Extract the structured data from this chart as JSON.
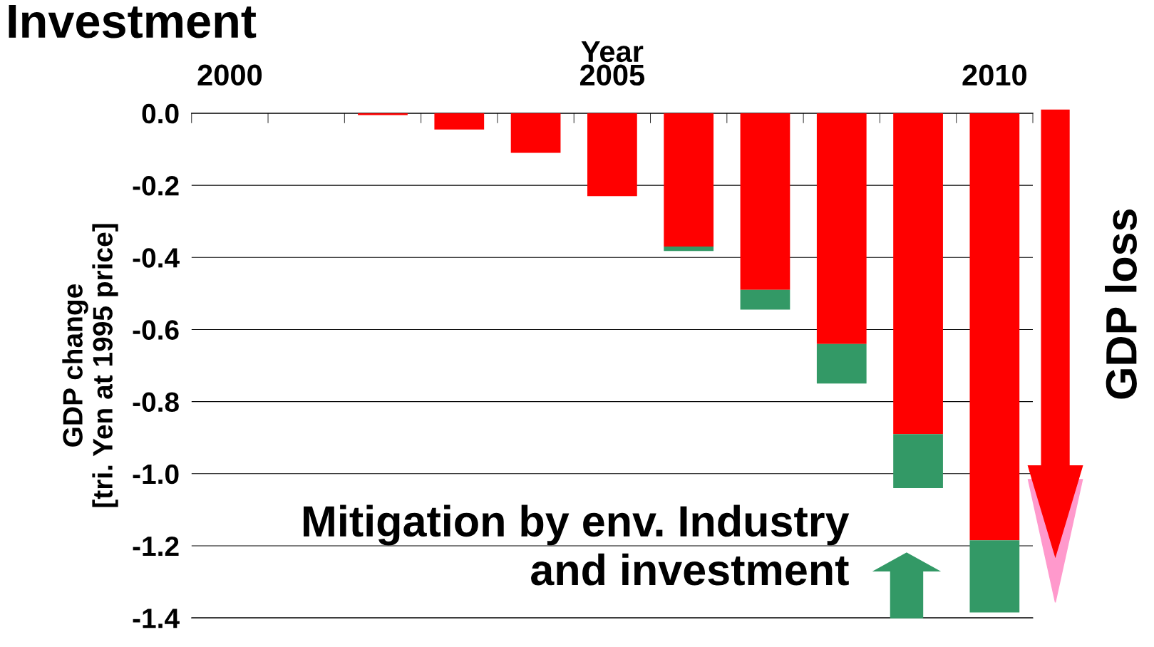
{
  "chart_data": {
    "type": "bar",
    "title": "Investment",
    "xlabel": "Year",
    "ylabel": "GDP change\n[tri. Yen at 1995 price]",
    "categories": [
      "2000",
      null,
      null,
      null,
      null,
      "2005",
      null,
      null,
      null,
      null,
      "2010"
    ],
    "stacked": true,
    "series": [
      {
        "color": "#ff0000",
        "values": [
          0,
          0,
          -0.005,
          -0.045,
          -0.11,
          -0.23,
          -0.37,
          -0.49,
          -0.64,
          -0.89,
          -1.185
        ]
      },
      {
        "color": "#339966",
        "values": [
          0,
          0,
          0,
          0,
          0,
          0,
          -0.012,
          -0.055,
          -0.11,
          -0.15,
          -0.2
        ]
      }
    ],
    "ylim": [
      -1.4,
      0
    ],
    "yticks": [
      {
        "value": 0,
        "label": "0.0"
      },
      {
        "value": -0.2,
        "label": "-0.2"
      },
      {
        "value": -0.4,
        "label": "-0.4"
      },
      {
        "value": -0.6,
        "label": "-0.6"
      },
      {
        "value": -0.8,
        "label": "-0.8"
      },
      {
        "value": -1.0,
        "label": "-1.0"
      },
      {
        "value": -1.2,
        "label": "-1.2"
      },
      {
        "value": -1.4,
        "label": "-1.4"
      }
    ],
    "grid": "y",
    "annotations": [
      "Mitigation by env. Industry\nand investment",
      "GDP loss"
    ]
  }
}
